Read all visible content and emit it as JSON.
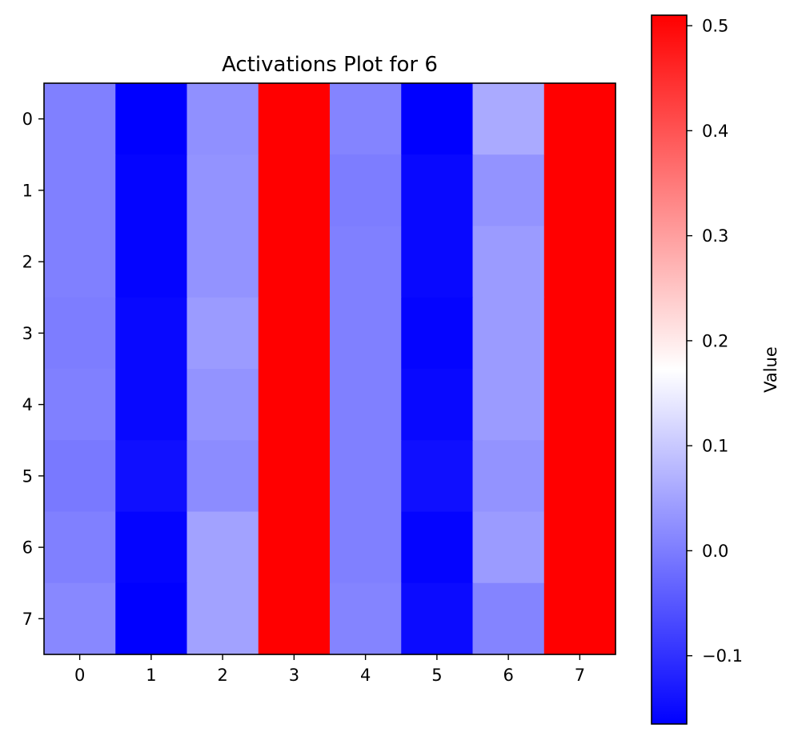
{
  "chart_data": {
    "type": "heatmap",
    "title": "Activations Plot for 6",
    "xlabel": "",
    "ylabel": "",
    "x_categories": [
      "0",
      "1",
      "2",
      "3",
      "4",
      "5",
      "6",
      "7"
    ],
    "y_categories": [
      "0",
      "1",
      "2",
      "3",
      "4",
      "5",
      "6",
      "7"
    ],
    "values": [
      [
        0.005,
        -0.165,
        0.025,
        0.51,
        0.01,
        -0.165,
        0.06,
        0.51
      ],
      [
        0.005,
        -0.16,
        0.03,
        0.51,
        0.0,
        -0.155,
        0.03,
        0.51
      ],
      [
        0.005,
        -0.16,
        0.03,
        0.51,
        0.005,
        -0.155,
        0.04,
        0.51
      ],
      [
        0.0,
        -0.155,
        0.04,
        0.51,
        0.005,
        -0.16,
        0.04,
        0.51
      ],
      [
        0.005,
        -0.155,
        0.03,
        0.51,
        0.005,
        -0.155,
        0.04,
        0.51
      ],
      [
        -0.005,
        -0.145,
        0.02,
        0.51,
        0.005,
        -0.145,
        0.03,
        0.51
      ],
      [
        0.005,
        -0.16,
        0.05,
        0.51,
        0.005,
        -0.16,
        0.04,
        0.51
      ],
      [
        0.015,
        -0.165,
        0.05,
        0.51,
        0.01,
        -0.15,
        0.01,
        0.51
      ]
    ],
    "colormap": "bwr",
    "colormap_colors": [
      "#0000ff",
      "#ffffff",
      "#ff0000"
    ],
    "vmin": -0.165,
    "vmax": 0.51,
    "colorbar": {
      "label": "Value",
      "ticks": [
        -0.1,
        0.0,
        0.1,
        0.2,
        0.3,
        0.4,
        0.5
      ],
      "tick_labels": [
        "−0.1",
        "0.0",
        "0.1",
        "0.2",
        "0.3",
        "0.4",
        "0.5"
      ]
    },
    "grid": false,
    "legend": "none"
  }
}
